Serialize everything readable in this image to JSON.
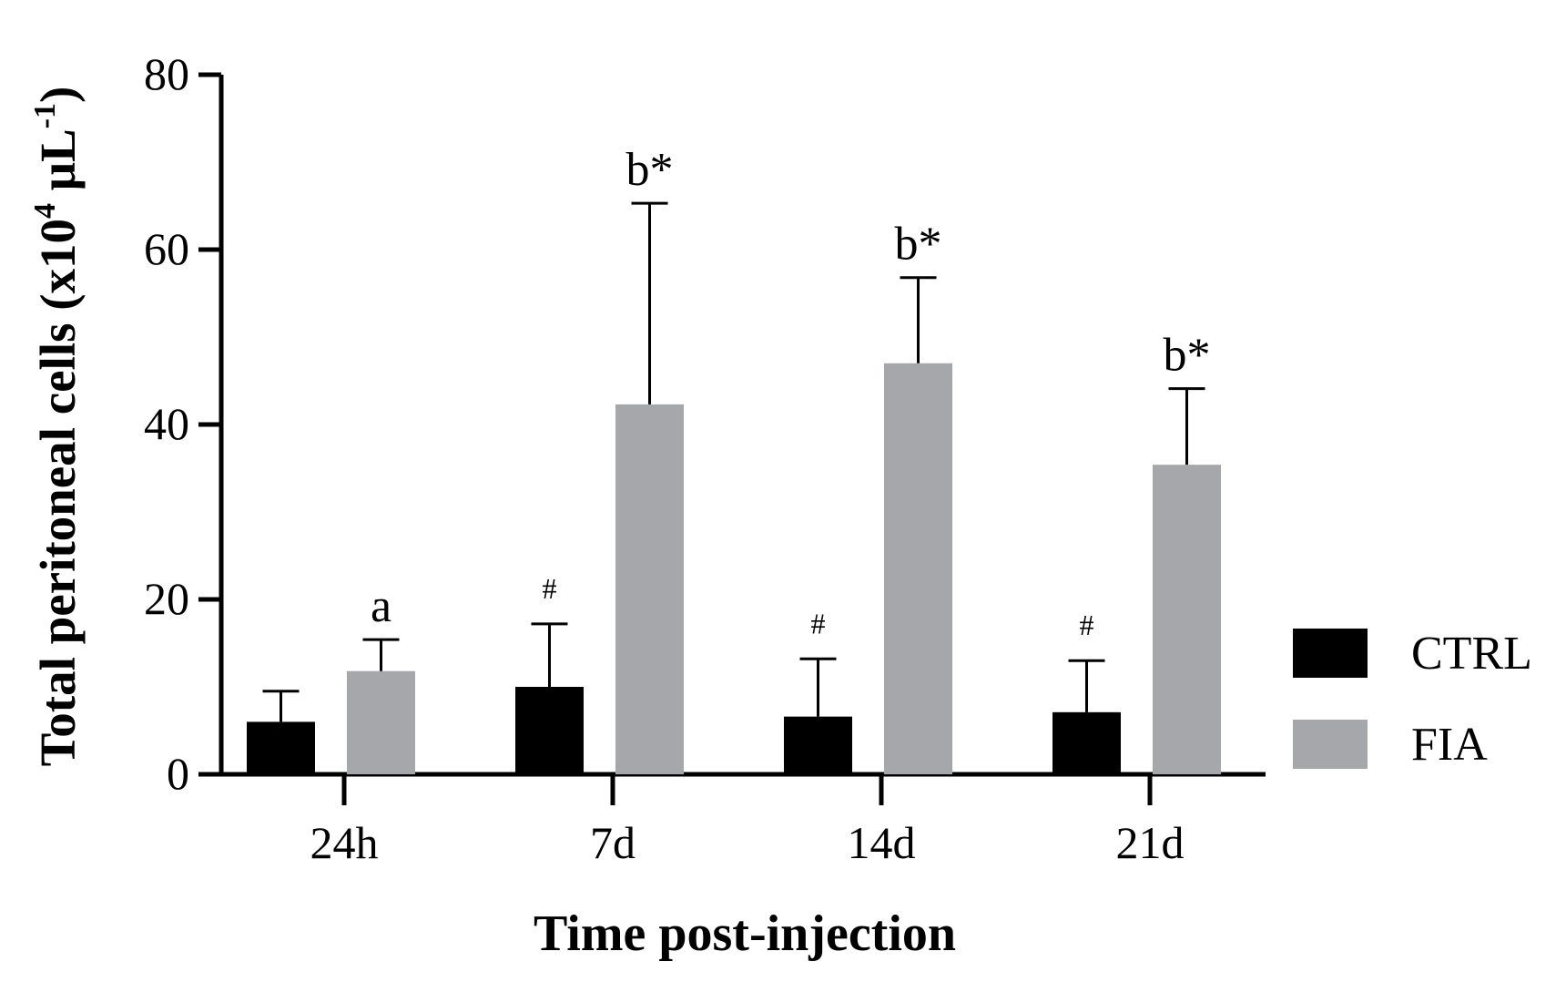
{
  "chart_data": {
    "type": "bar",
    "title": "",
    "xlabel": "Time post-injection",
    "ylabel": {
      "main": "Total peritoneal cells (x10",
      "exp1": "4",
      "mid": " μL",
      "exp2": "-1",
      "end": ")"
    },
    "categories": [
      "24h",
      "7d",
      "14d",
      "21d"
    ],
    "ylim": [
      0,
      80
    ],
    "yticks": [
      0,
      20,
      40,
      60,
      80
    ],
    "grid": false,
    "legend_position": "right",
    "series": [
      {
        "name": "CTRL",
        "color": "#000000",
        "values": [
          6.0,
          10.0,
          6.6,
          7.1
        ],
        "error": [
          3.5,
          7.2,
          6.6,
          5.9
        ],
        "annotations": [
          "",
          "#",
          "#",
          "#"
        ]
      },
      {
        "name": "FIA",
        "color": "#a6a7aa",
        "values": [
          11.8,
          42.3,
          47.0,
          35.4
        ],
        "error": [
          3.6,
          23.0,
          9.8,
          8.7
        ],
        "annotations": [
          "a",
          "b*",
          "b*",
          "b*"
        ]
      }
    ]
  }
}
